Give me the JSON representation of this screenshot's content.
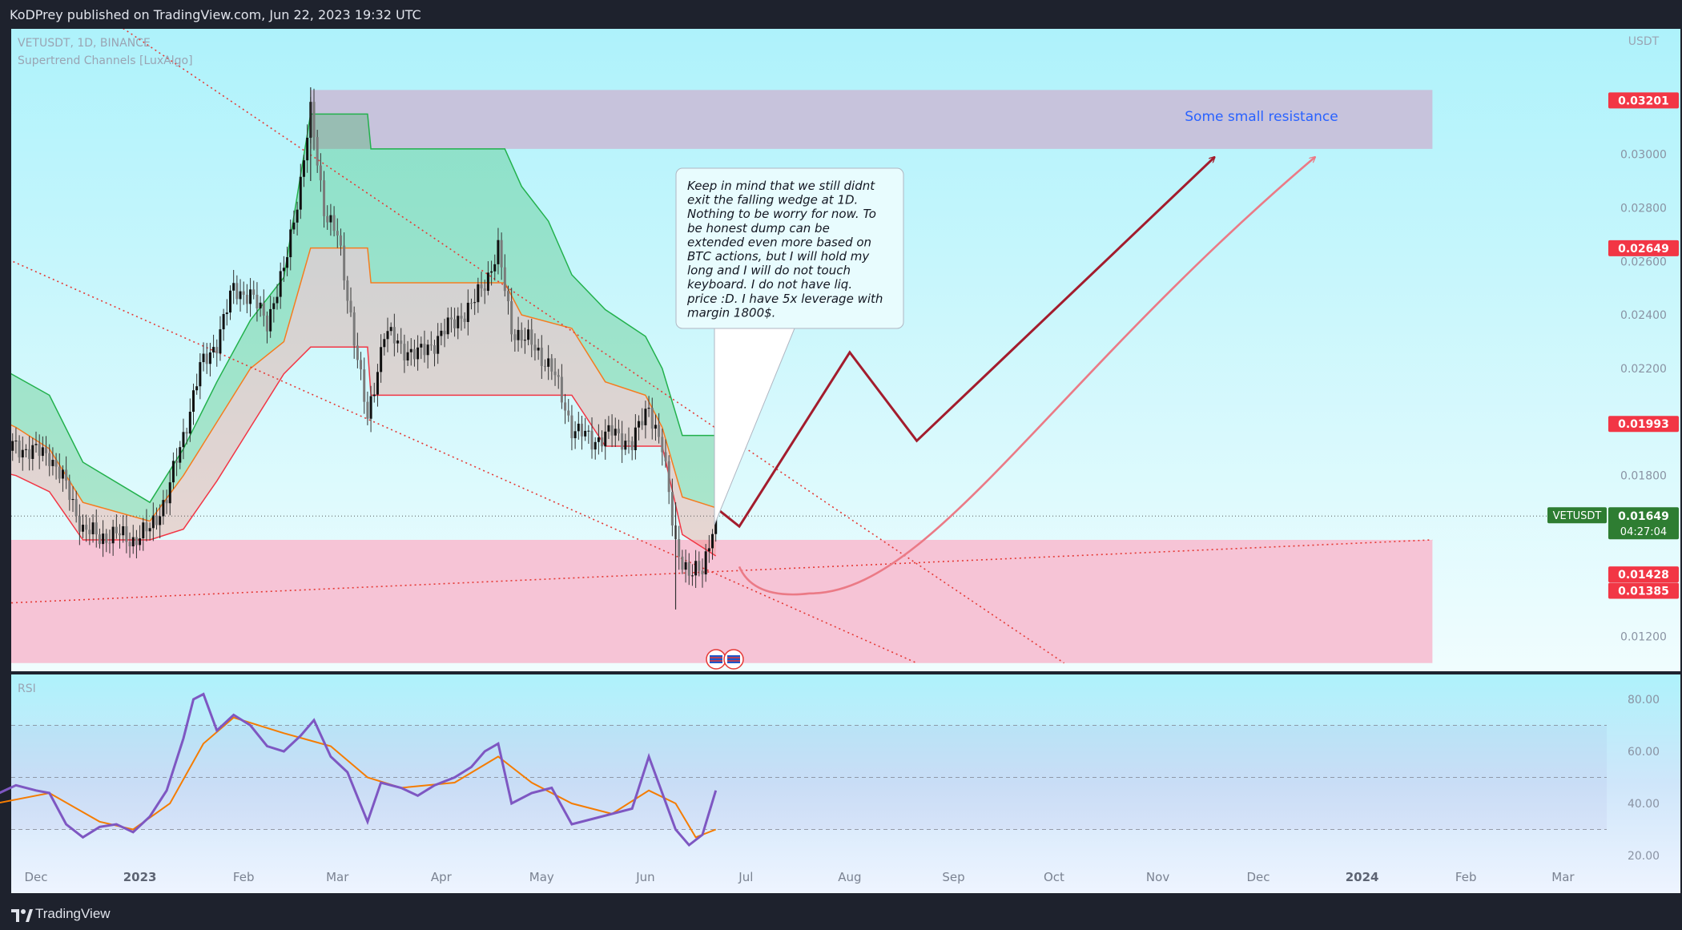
{
  "header": {
    "publish_text": "KoDPrey published on TradingView.com, Jun 22, 2023 19:32 UTC"
  },
  "footer": {
    "brand": "TradingView"
  },
  "legend": {
    "symbol_line": "VETUSDT, 1D, BINANCE",
    "indicator": "Supertrend Channels [LuxAlgo]",
    "currency": "USDT"
  },
  "rsi_panel": {
    "label": "RSI"
  },
  "annotations": {
    "resistance_text": "Some small resistance",
    "note_lines": [
      "Keep in mind that we still didnt",
      "exit the falling wedge at 1D.",
      "Nothing to be worry for now. To",
      "be honest dump can be",
      "extended even more based on",
      "BTC actions, but I will hold my",
      "long and I will do not touch",
      "keyboard. I do not have liq.",
      "price :D. I have 5x leverage with",
      "margin 1800$."
    ]
  },
  "colors": {
    "background_top": "#aef2fb",
    "background_bottom": "#f0fdfe",
    "resistance_zone": "#c7c3dc",
    "support_zone": "#f6c4d6",
    "channel_upper": "#22b14c",
    "channel_mid": "#f57c1f",
    "channel_lower": "#f23645",
    "projection_main": "#a31c2d",
    "projection_alt": "#eb7a86",
    "rsi_line": "#7e57c2",
    "rsi_ma": "#f57c00",
    "label_red": "#f23645",
    "label_green": "#2e7d32"
  },
  "chart_data": {
    "type": "candlestick",
    "symbol": "VETUSDT",
    "timeframe": "1D",
    "exchange": "BINANCE",
    "last_price": 0.01649,
    "countdown": "04:27:04",
    "ylim": [
      0.011,
      0.034
    ],
    "y_ticks": [
      "0.01200",
      "0.01800",
      "0.02000",
      "0.02200",
      "0.02400",
      "0.02600",
      "0.02800",
      "0.03000"
    ],
    "x_ticks": [
      "Dec",
      "2023",
      "Feb",
      "Mar",
      "Apr",
      "May",
      "Jun",
      "Jul",
      "Aug",
      "Sep",
      "Oct",
      "Nov",
      "Dec",
      "2024",
      "Feb",
      "Mar"
    ],
    "x_tick_dates": [
      "2022-12-01",
      "2023-01-01",
      "2023-02-01",
      "2023-03-01",
      "2023-04-01",
      "2023-05-01",
      "2023-06-01",
      "2023-07-01",
      "2023-08-01",
      "2023-09-01",
      "2023-10-01",
      "2023-11-01",
      "2023-12-01",
      "2024-01-01",
      "2024-02-01",
      "2024-03-01"
    ],
    "price_labels": [
      {
        "text": "0.03201",
        "value": 0.03201,
        "color": "red"
      },
      {
        "text": "0.02649",
        "value": 0.02649,
        "color": "red"
      },
      {
        "text": "0.01993",
        "value": 0.01993,
        "color": "red"
      },
      {
        "text": "0.01428",
        "value": 0.01428,
        "color": "red"
      },
      {
        "text": "0.01385",
        "value": 0.01385,
        "color": "red"
      }
    ],
    "zones": [
      {
        "name": "resistance",
        "from": "2023-02-21",
        "to": "2024-01-22",
        "low": 0.0302,
        "high": 0.0324
      },
      {
        "name": "support",
        "from": "2022-11-15",
        "to": "2024-01-22",
        "low": 0.011,
        "high": 0.0156
      }
    ],
    "closes": [
      {
        "d": "2022-11-15",
        "c": 0.0188
      },
      {
        "d": "2022-11-20",
        "c": 0.0189
      },
      {
        "d": "2022-11-25",
        "c": 0.0191
      },
      {
        "d": "2022-11-30",
        "c": 0.0189
      },
      {
        "d": "2022-12-05",
        "c": 0.0188
      },
      {
        "d": "2022-12-10",
        "c": 0.0176
      },
      {
        "d": "2022-12-15",
        "c": 0.016
      },
      {
        "d": "2022-12-20",
        "c": 0.0157
      },
      {
        "d": "2022-12-25",
        "c": 0.0158
      },
      {
        "d": "2022-12-30",
        "c": 0.0156
      },
      {
        "d": "2023-01-04",
        "c": 0.016
      },
      {
        "d": "2023-01-09",
        "c": 0.0172
      },
      {
        "d": "2023-01-14",
        "c": 0.0195
      },
      {
        "d": "2023-01-19",
        "c": 0.022
      },
      {
        "d": "2023-01-24",
        "c": 0.023
      },
      {
        "d": "2023-01-29",
        "c": 0.025
      },
      {
        "d": "2023-02-03",
        "c": 0.0247
      },
      {
        "d": "2023-02-08",
        "c": 0.0238
      },
      {
        "d": "2023-02-13",
        "c": 0.0256
      },
      {
        "d": "2023-02-18",
        "c": 0.029
      },
      {
        "d": "2023-02-21",
        "c": 0.0315
      },
      {
        "d": "2023-02-25",
        "c": 0.028
      },
      {
        "d": "2023-03-01",
        "c": 0.0269
      },
      {
        "d": "2023-03-05",
        "c": 0.024
      },
      {
        "d": "2023-03-10",
        "c": 0.02
      },
      {
        "d": "2023-03-15",
        "c": 0.0234
      },
      {
        "d": "2023-03-20",
        "c": 0.0228
      },
      {
        "d": "2023-03-25",
        "c": 0.0225
      },
      {
        "d": "2023-03-30",
        "c": 0.023
      },
      {
        "d": "2023-04-05",
        "c": 0.0238
      },
      {
        "d": "2023-04-10",
        "c": 0.0243
      },
      {
        "d": "2023-04-15",
        "c": 0.0255
      },
      {
        "d": "2023-04-18",
        "c": 0.0264
      },
      {
        "d": "2023-04-22",
        "c": 0.0235
      },
      {
        "d": "2023-04-28",
        "c": 0.0229
      },
      {
        "d": "2023-05-04",
        "c": 0.022
      },
      {
        "d": "2023-05-10",
        "c": 0.0198
      },
      {
        "d": "2023-05-16",
        "c": 0.0193
      },
      {
        "d": "2023-05-22",
        "c": 0.0196
      },
      {
        "d": "2023-05-28",
        "c": 0.0192
      },
      {
        "d": "2023-06-02",
        "c": 0.0206
      },
      {
        "d": "2023-06-06",
        "c": 0.019
      },
      {
        "d": "2023-06-10",
        "c": 0.0155
      },
      {
        "d": "2023-06-14",
        "c": 0.0142
      },
      {
        "d": "2023-06-18",
        "c": 0.0146
      },
      {
        "d": "2023-06-22",
        "c": 0.01649
      }
    ],
    "supertrend_upper": [
      {
        "d": "2022-11-15",
        "v": 0.0224
      },
      {
        "d": "2022-11-25",
        "v": 0.0217
      },
      {
        "d": "2022-12-05",
        "v": 0.021
      },
      {
        "d": "2022-12-15",
        "v": 0.0185
      },
      {
        "d": "2023-01-04",
        "v": 0.017
      },
      {
        "d": "2023-01-14",
        "v": 0.019
      },
      {
        "d": "2023-01-24",
        "v": 0.0215
      },
      {
        "d": "2023-02-03",
        "v": 0.0238
      },
      {
        "d": "2023-02-13",
        "v": 0.0254
      },
      {
        "d": "2023-02-21",
        "v": 0.0315
      },
      {
        "d": "2023-03-10",
        "v": 0.0315
      },
      {
        "d": "2023-03-11",
        "v": 0.0302
      },
      {
        "d": "2023-04-20",
        "v": 0.0302
      },
      {
        "d": "2023-04-25",
        "v": 0.0288
      },
      {
        "d": "2023-05-03",
        "v": 0.0275
      },
      {
        "d": "2023-05-10",
        "v": 0.0255
      },
      {
        "d": "2023-05-20",
        "v": 0.0242
      },
      {
        "d": "2023-06-01",
        "v": 0.0232
      },
      {
        "d": "2023-06-06",
        "v": 0.022
      },
      {
        "d": "2023-06-12",
        "v": 0.0195
      },
      {
        "d": "2023-06-22",
        "v": 0.0195
      }
    ],
    "supertrend_mid": [
      {
        "d": "2022-11-15",
        "v": 0.0204
      },
      {
        "d": "2022-11-25",
        "v": 0.0198
      },
      {
        "d": "2022-12-05",
        "v": 0.019
      },
      {
        "d": "2022-12-15",
        "v": 0.017
      },
      {
        "d": "2023-01-04",
        "v": 0.0163
      },
      {
        "d": "2023-01-14",
        "v": 0.018
      },
      {
        "d": "2023-01-24",
        "v": 0.02
      },
      {
        "d": "2023-02-03",
        "v": 0.022
      },
      {
        "d": "2023-02-13",
        "v": 0.023
      },
      {
        "d": "2023-02-21",
        "v": 0.0265
      },
      {
        "d": "2023-03-10",
        "v": 0.0265
      },
      {
        "d": "2023-03-11",
        "v": 0.0252
      },
      {
        "d": "2023-04-20",
        "v": 0.0252
      },
      {
        "d": "2023-04-25",
        "v": 0.024
      },
      {
        "d": "2023-05-10",
        "v": 0.0235
      },
      {
        "d": "2023-05-20",
        "v": 0.0215
      },
      {
        "d": "2023-06-01",
        "v": 0.021
      },
      {
        "d": "2023-06-06",
        "v": 0.0198
      },
      {
        "d": "2023-06-12",
        "v": 0.0172
      },
      {
        "d": "2023-06-22",
        "v": 0.0168
      }
    ],
    "supertrend_lower": [
      {
        "d": "2022-11-15",
        "v": 0.0183
      },
      {
        "d": "2022-11-25",
        "v": 0.018
      },
      {
        "d": "2022-12-05",
        "v": 0.0174
      },
      {
        "d": "2022-12-15",
        "v": 0.0156
      },
      {
        "d": "2023-01-04",
        "v": 0.0156
      },
      {
        "d": "2023-01-14",
        "v": 0.016
      },
      {
        "d": "2023-01-24",
        "v": 0.0178
      },
      {
        "d": "2023-02-03",
        "v": 0.0198
      },
      {
        "d": "2023-02-13",
        "v": 0.0218
      },
      {
        "d": "2023-02-21",
        "v": 0.0228
      },
      {
        "d": "2023-03-10",
        "v": 0.0228
      },
      {
        "d": "2023-03-11",
        "v": 0.021
      },
      {
        "d": "2023-05-10",
        "v": 0.021
      },
      {
        "d": "2023-05-20",
        "v": 0.0191
      },
      {
        "d": "2023-06-06",
        "v": 0.0191
      },
      {
        "d": "2023-06-12",
        "v": 0.0158
      },
      {
        "d": "2023-06-22",
        "v": 0.015
      }
    ],
    "trendlines": [
      {
        "name": "wedge-upper",
        "from": {
          "d": "2022-12-27",
          "v": 0.0347
        },
        "to": {
          "d": "2023-10-04",
          "v": 0.011
        },
        "style": "dotted"
      },
      {
        "name": "wedge-lower",
        "from": {
          "d": "2022-11-15",
          "v": 0.0265
        },
        "to": {
          "d": "2023-08-21",
          "v": 0.011
        },
        "style": "dotted"
      },
      {
        "name": "rising-support",
        "from": {
          "d": "2022-11-15",
          "v": 0.0132
        },
        "to": {
          "d": "2024-01-22",
          "v": 0.0156
        },
        "style": "dotted"
      }
    ],
    "projection_main": [
      {
        "d": "2023-06-22",
        "v": 0.0168
      },
      {
        "d": "2023-06-29",
        "v": 0.0161
      },
      {
        "d": "2023-08-01",
        "v": 0.0226
      },
      {
        "d": "2023-08-21",
        "v": 0.0193
      },
      {
        "d": "2023-11-18",
        "v": 0.0299
      }
    ],
    "projection_alt": {
      "start": {
        "d": "2023-06-29",
        "v": 0.0146
      },
      "low": {
        "d": "2023-07-20",
        "v": 0.0136
      },
      "end": {
        "d": "2023-12-18",
        "v": 0.0299
      }
    },
    "rsi": {
      "ylim": [
        15,
        85
      ],
      "y_ticks": [
        20,
        40,
        60,
        80
      ],
      "bands": [
        30,
        50,
        70
      ],
      "values": [
        {
          "d": "2022-11-15",
          "v": 41
        },
        {
          "d": "2022-11-20",
          "v": 44
        },
        {
          "d": "2022-11-25",
          "v": 47
        },
        {
          "d": "2022-12-01",
          "v": 45
        },
        {
          "d": "2022-12-05",
          "v": 44
        },
        {
          "d": "2022-12-10",
          "v": 32
        },
        {
          "d": "2022-12-15",
          "v": 27
        },
        {
          "d": "2022-12-20",
          "v": 31
        },
        {
          "d": "2022-12-25",
          "v": 32
        },
        {
          "d": "2022-12-30",
          "v": 29
        },
        {
          "d": "2023-01-04",
          "v": 35
        },
        {
          "d": "2023-01-09",
          "v": 45
        },
        {
          "d": "2023-01-14",
          "v": 65
        },
        {
          "d": "2023-01-17",
          "v": 80
        },
        {
          "d": "2023-01-20",
          "v": 82
        },
        {
          "d": "2023-01-24",
          "v": 68
        },
        {
          "d": "2023-01-29",
          "v": 74
        },
        {
          "d": "2023-02-03",
          "v": 70
        },
        {
          "d": "2023-02-08",
          "v": 62
        },
        {
          "d": "2023-02-13",
          "v": 60
        },
        {
          "d": "2023-02-18",
          "v": 66
        },
        {
          "d": "2023-02-22",
          "v": 72
        },
        {
          "d": "2023-02-27",
          "v": 58
        },
        {
          "d": "2023-03-04",
          "v": 52
        },
        {
          "d": "2023-03-10",
          "v": 33
        },
        {
          "d": "2023-03-14",
          "v": 48
        },
        {
          "d": "2023-03-20",
          "v": 46
        },
        {
          "d": "2023-03-25",
          "v": 43
        },
        {
          "d": "2023-03-30",
          "v": 47
        },
        {
          "d": "2023-04-05",
          "v": 50
        },
        {
          "d": "2023-04-10",
          "v": 54
        },
        {
          "d": "2023-04-14",
          "v": 60
        },
        {
          "d": "2023-04-18",
          "v": 63
        },
        {
          "d": "2023-04-22",
          "v": 40
        },
        {
          "d": "2023-04-28",
          "v": 44
        },
        {
          "d": "2023-05-04",
          "v": 46
        },
        {
          "d": "2023-05-10",
          "v": 32
        },
        {
          "d": "2023-05-16",
          "v": 34
        },
        {
          "d": "2023-05-22",
          "v": 36
        },
        {
          "d": "2023-05-28",
          "v": 38
        },
        {
          "d": "2023-06-02",
          "v": 58
        },
        {
          "d": "2023-06-06",
          "v": 44
        },
        {
          "d": "2023-06-10",
          "v": 30
        },
        {
          "d": "2023-06-14",
          "v": 24
        },
        {
          "d": "2023-06-18",
          "v": 28
        },
        {
          "d": "2023-06-22",
          "v": 45
        }
      ],
      "ma": [
        {
          "d": "2022-11-15",
          "v": 39
        },
        {
          "d": "2022-12-05",
          "v": 44
        },
        {
          "d": "2022-12-20",
          "v": 33
        },
        {
          "d": "2022-12-30",
          "v": 30
        },
        {
          "d": "2023-01-10",
          "v": 40
        },
        {
          "d": "2023-01-20",
          "v": 63
        },
        {
          "d": "2023-01-29",
          "v": 73
        },
        {
          "d": "2023-02-13",
          "v": 67
        },
        {
          "d": "2023-02-27",
          "v": 62
        },
        {
          "d": "2023-03-10",
          "v": 50
        },
        {
          "d": "2023-03-20",
          "v": 46
        },
        {
          "d": "2023-04-05",
          "v": 48
        },
        {
          "d": "2023-04-18",
          "v": 58
        },
        {
          "d": "2023-04-28",
          "v": 48
        },
        {
          "d": "2023-05-10",
          "v": 40
        },
        {
          "d": "2023-05-22",
          "v": 36
        },
        {
          "d": "2023-06-02",
          "v": 45
        },
        {
          "d": "2023-06-10",
          "v": 40
        },
        {
          "d": "2023-06-16",
          "v": 27
        },
        {
          "d": "2023-06-22",
          "v": 30
        }
      ]
    }
  }
}
